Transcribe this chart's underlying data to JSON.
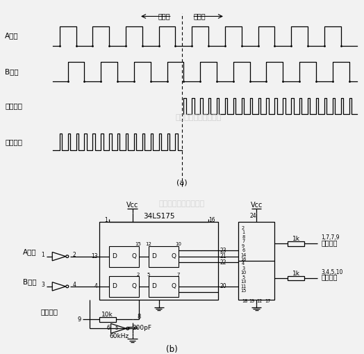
{
  "bg_color": "#f2f2f2",
  "title_a": "A通道",
  "title_b": "B通道",
  "title_fwd": "正向脉冲",
  "title_rev": "逆向脉冲",
  "label_fwd_dir": "正方向",
  "label_rev_dir": "逆方向",
  "label_a": "(a)",
  "label_b": "(b)",
  "watermark": "杭州将睿科技有限公司",
  "ic_label": "34LS175",
  "vcc": "Vcc",
  "vcc2": "Vcc",
  "freq": "60kHz",
  "r1": "10k",
  "c1": "200pF",
  "r2": "1k",
  "r3": "1k",
  "pins_fwd": "1,7,7,9",
  "pins_rev": "3,4,5,10",
  "label_fwd_pulse": "正向脉冲",
  "label_rev_pulse": "逆向脉冲",
  "label_shape": "整形电路",
  "line_color": "#000000",
  "text_color": "#000000",
  "watermark_color": "#c8c8c8",
  "lw": 0.9
}
